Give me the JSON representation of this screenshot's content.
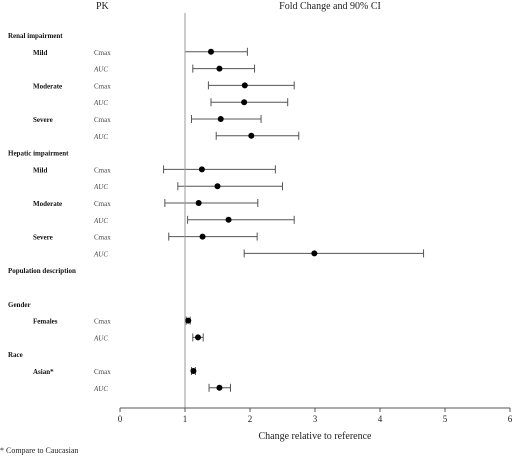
{
  "chart_data": {
    "type": "forest",
    "pk_header": "PK",
    "title": "Fold Change and 90% CI",
    "xlabel": "Change relative to reference",
    "xlim": [
      0,
      6
    ],
    "x_ticks": [
      0,
      1,
      2,
      3,
      4,
      5,
      6
    ],
    "reference_line": 1,
    "footnote": "* Compare to Caucasian",
    "rows": [
      {
        "group": "Renal impairment",
        "subgroup": "",
        "param": "",
        "point": null,
        "lo": null,
        "hi": null
      },
      {
        "group": "",
        "subgroup": "Mild",
        "param": "Cmax",
        "point": 1.4,
        "lo": 1.0,
        "hi": 1.96
      },
      {
        "group": "",
        "subgroup": "",
        "param": "AUC",
        "point": 1.53,
        "lo": 1.12,
        "hi": 2.07
      },
      {
        "group": "",
        "subgroup": "Moderate",
        "param": "Cmax",
        "point": 1.92,
        "lo": 1.36,
        "hi": 2.68
      },
      {
        "group": "",
        "subgroup": "",
        "param": "AUC",
        "point": 1.91,
        "lo": 1.4,
        "hi": 2.58
      },
      {
        "group": "",
        "subgroup": "Severe",
        "param": "Cmax",
        "point": 1.55,
        "lo": 1.1,
        "hi": 2.17
      },
      {
        "group": "",
        "subgroup": "",
        "param": "AUC",
        "point": 2.02,
        "lo": 1.48,
        "hi": 2.75
      },
      {
        "group": "Hepatic impairment",
        "subgroup": "",
        "param": "",
        "point": null,
        "lo": null,
        "hi": null
      },
      {
        "group": "",
        "subgroup": "Mild",
        "param": "Cmax",
        "point": 1.26,
        "lo": 0.67,
        "hi": 2.39
      },
      {
        "group": "",
        "subgroup": "",
        "param": "AUC",
        "point": 1.5,
        "lo": 0.89,
        "hi": 2.5
      },
      {
        "group": "",
        "subgroup": "Moderate",
        "param": "Cmax",
        "point": 1.21,
        "lo": 0.69,
        "hi": 2.12
      },
      {
        "group": "",
        "subgroup": "",
        "param": "AUC",
        "point": 1.67,
        "lo": 1.04,
        "hi": 2.68
      },
      {
        "group": "",
        "subgroup": "Severe",
        "param": "Cmax",
        "point": 1.27,
        "lo": 0.75,
        "hi": 2.11
      },
      {
        "group": "",
        "subgroup": "",
        "param": "AUC",
        "point": 2.99,
        "lo": 1.91,
        "hi": 4.67
      },
      {
        "group": "Population description",
        "subgroup": "",
        "param": "",
        "point": null,
        "lo": null,
        "hi": null
      },
      {
        "group": "",
        "subgroup": "",
        "param": "",
        "point": null,
        "lo": null,
        "hi": null
      },
      {
        "group": "Gender",
        "subgroup": "",
        "param": "",
        "point": null,
        "lo": null,
        "hi": null
      },
      {
        "group": "",
        "subgroup": "Females",
        "param": "Cmax",
        "point": 1.05,
        "lo": 1.02,
        "hi": 1.08
      },
      {
        "group": "",
        "subgroup": "",
        "param": "AUC",
        "point": 1.2,
        "lo": 1.12,
        "hi": 1.28
      },
      {
        "group": "Race",
        "subgroup": "",
        "param": "",
        "point": null,
        "lo": null,
        "hi": null
      },
      {
        "group": "",
        "subgroup": "Asian*",
        "param": "Cmax",
        "point": 1.13,
        "lo": 1.1,
        "hi": 1.16
      },
      {
        "group": "",
        "subgroup": "",
        "param": "AUC",
        "point": 1.53,
        "lo": 1.37,
        "hi": 1.7
      }
    ]
  }
}
